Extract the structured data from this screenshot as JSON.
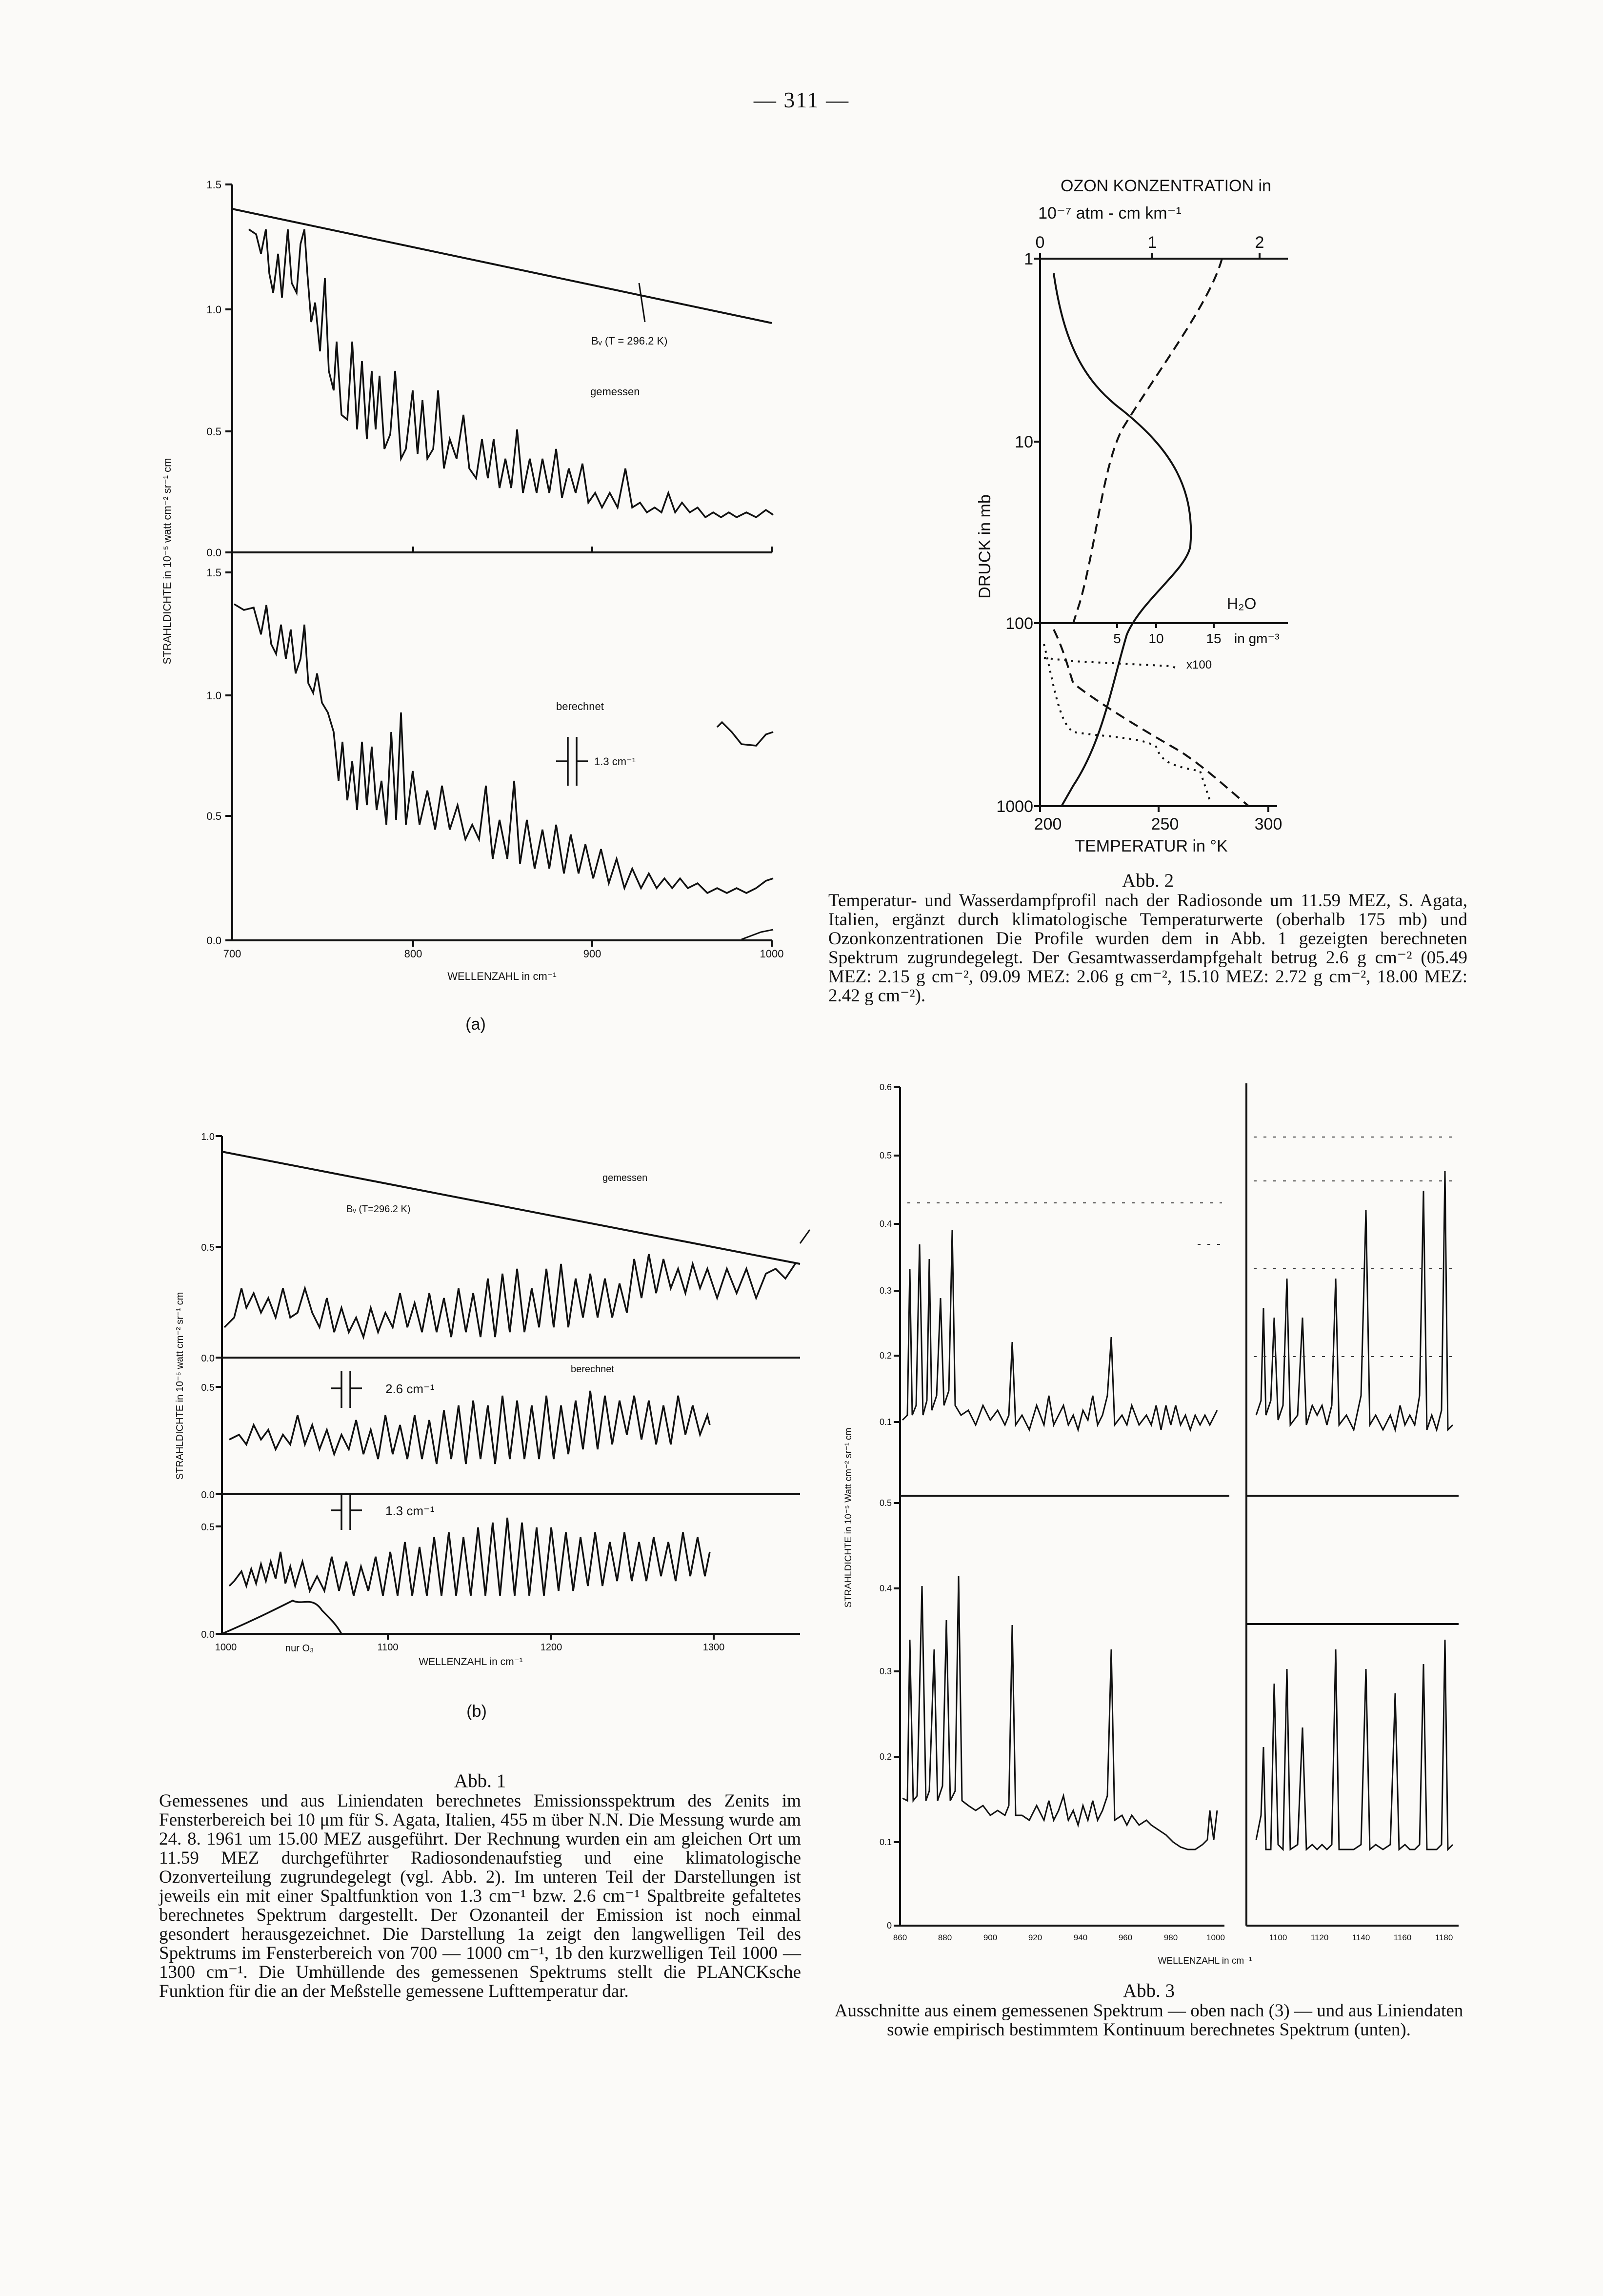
{
  "page": {
    "number": "— 311 —"
  },
  "fig1a": {
    "ylabel": "STRAHLDICHTE in 10⁻⁵ watt cm⁻² sr⁻¹ cm",
    "xlabel": "WELLENZAHL in cm⁻¹",
    "upper_yticks": [
      "1.5",
      "1.0",
      "0.5",
      "0.0"
    ],
    "lower_yticks": [
      "1.5",
      "1.0",
      "0.5",
      "0.0"
    ],
    "xticks": [
      "700",
      "800",
      "900",
      "1000"
    ],
    "planck_label": "Bᵥ (T = 296.2 K)",
    "measured_label": "gemessen",
    "computed_label": "berechnet",
    "slit_label": "1.3 cm⁻¹",
    "panel_label": "(a)"
  },
  "fig1b": {
    "ylabel": "STRAHLDICHTE in 10⁻⁵ watt cm⁻² sr⁻¹ cm",
    "xlabel": "WELLENZAHL in cm⁻¹",
    "yticks_top": [
      "1.0",
      "0.5",
      "0.0"
    ],
    "yticks_mid": [
      "0.5",
      "0.0"
    ],
    "yticks_low": [
      "0.5",
      "0.0"
    ],
    "xticks": [
      "1000",
      "1100",
      "1200",
      "1300"
    ],
    "planck_label": "Bᵥ (T=296.2 K)",
    "measured_label": "gemessen",
    "computed_label": "berechnet",
    "slit_26": "2.6 cm⁻¹",
    "slit_13": "1.3 cm⁻¹",
    "ozone_label": "nur O₃",
    "panel_label": "(b)"
  },
  "fig1_caption": {
    "title": "Abb. 1",
    "text": "Gemessenes und aus Liniendaten berechnetes Emissionsspektrum des Zenits im Fensterbereich bei 10 μm für S. Agata, Italien, 455 m über N.N. Die Messung wurde am 24. 8. 1961 um 15.00 MEZ ausgeführt. Der Rechnung wurden ein am gleichen Ort um 11.59 MEZ durchgeführter Radiosondenaufstieg und eine klimatologische Ozonverteilung zugrundegelegt (vgl. Abb. 2). Im unteren Teil der Darstellungen ist jeweils ein mit einer Spaltfunktion von 1.3 cm⁻¹ bzw. 2.6 cm⁻¹ Spaltbreite gefaltetes berechnetes Spektrum dargestellt. Der Ozonanteil der Emission ist noch einmal gesondert herausgezeichnet. Die Darstellung 1a zeigt den langwelligen Teil des Spektrums im Fensterbereich von 700 — 1000 cm⁻¹, 1b den kurzwelligen Teil 1000 — 1300 cm⁻¹. Die Umhüllende des gemessenen Spektrums stellt die PLANCKsche Funktion für die an der Meßstelle gemessene Lufttemperatur dar."
  },
  "fig2": {
    "top_axis_title": "OZON KONZENTRATION in",
    "top_axis_unit": "10⁻⁷ atm - cm km⁻¹",
    "top_ticks": [
      "0",
      "1",
      "2"
    ],
    "ylabel": "DRUCK in mb",
    "yticks": [
      "1",
      "10",
      "100",
      "1000"
    ],
    "h2o_label": "H₂O",
    "h2o_ticks": [
      "5",
      "10",
      "15"
    ],
    "h2o_unit": "in gm⁻³",
    "x100_label": "x100",
    "bottom_ticks": [
      "200",
      "250",
      "300"
    ],
    "xlabel": "TEMPERATUR in °K"
  },
  "fig2_caption": {
    "title": "Abb. 2",
    "text": "Temperatur- und Wasserdampfprofil nach der Radiosonde um 11.59 MEZ, S. Agata, Italien, ergänzt durch klimatologische Temperaturwerte (oberhalb 175 mb) und Ozonkonzentrationen Die Profile wurden dem in Abb. 1 gezeigten berechneten Spektrum zugrundegelegt. Der Gesamtwasserdampfgehalt betrug 2.6 g cm⁻² (05.49 MEZ: 2.15 g cm⁻², 09.09 MEZ: 2.06 g cm⁻², 15.10 MEZ: 2.72 g cm⁻², 18.00 MEZ: 2.42 g cm⁻²)."
  },
  "fig3": {
    "ylabel": "STRAHLDICHTE in 10⁻⁵ Watt cm⁻² sr⁻¹ cm",
    "upper_yticks": [
      "0.6",
      "0.5",
      "0.4",
      "0.3",
      "0.2",
      "0.1"
    ],
    "lower_yticks": [
      "0.5",
      "0.4",
      "0.3",
      "0.2",
      "0.1",
      "0"
    ],
    "xticks_left": [
      "860",
      "880",
      "900",
      "920",
      "940",
      "960",
      "980",
      "1000"
    ],
    "xticks_right": [
      "1100",
      "1120",
      "1140",
      "1160",
      "1180"
    ],
    "xlabel": "WELLENZAHL in cm⁻¹"
  },
  "fig3_caption": {
    "title": "Abb. 3",
    "text": "Ausschnitte aus einem gemessenen Spektrum — oben nach (3) — und aus Liniendaten sowie empirisch bestimmtem Kontinuum berechnetes Spektrum (unten)."
  },
  "chart_data": [
    {
      "type": "line",
      "title": "",
      "xlabel": "WELLENZAHL in cm⁻¹",
      "ylabel": "STRAHLDICHTE in 10⁻⁵ watt cm⁻² sr⁻¹ cm",
      "xlim": [
        700,
        1000
      ],
      "ylim": [
        0,
        1.5
      ],
      "series": [
        {
          "name": "Bᵥ (T = 296.2 K)",
          "x": [
            700,
            1000
          ],
          "values": [
            1.42,
            0.95
          ]
        },
        {
          "name": "gemessen",
          "x": [
            710,
            750,
            760,
            800,
            850,
            900,
            950,
            1000
          ],
          "values": [
            1.35,
            1.1,
            0.5,
            0.45,
            0.3,
            0.25,
            0.22,
            0.18
          ]
        },
        {
          "name": "berechnet",
          "x": [
            710,
            750,
            760,
            800,
            850,
            900,
            950,
            1000
          ],
          "values": [
            1.35,
            1.2,
            0.55,
            0.4,
            0.32,
            0.22,
            0.18,
            0.2
          ]
        }
      ]
    },
    {
      "type": "line",
      "title": "",
      "xlabel": "WELLENZAHL in cm⁻¹",
      "ylabel": "STRAHLDICHTE in 10⁻⁵ watt cm⁻² sr⁻¹ cm",
      "xlim": [
        1000,
        1350
      ],
      "series": [
        {
          "name": "Bᵥ (T=296.2 K)",
          "x": [
            1000,
            1350
          ],
          "values": [
            0.92,
            0.42
          ]
        },
        {
          "name": "gemessen",
          "x": [
            1000,
            1100,
            1200,
            1300,
            1350
          ],
          "values": [
            0.3,
            0.2,
            0.3,
            0.35,
            0.4
          ]
        },
        {
          "name": "2.6 cm⁻¹",
          "x": [
            1000,
            1100,
            1200,
            1300
          ],
          "values": [
            0.28,
            0.22,
            0.3,
            0.4
          ]
        },
        {
          "name": "1.3 cm⁻¹",
          "x": [
            1000,
            1100,
            1200,
            1300
          ],
          "values": [
            0.3,
            0.3,
            0.35,
            0.4
          ]
        },
        {
          "name": "nur O₃",
          "x": [
            1000,
            1040,
            1050,
            1075
          ],
          "values": [
            0.0,
            0.1,
            0.15,
            0.0
          ]
        }
      ]
    },
    {
      "type": "line",
      "title": "",
      "xlabel": "TEMPERATUR in °K",
      "ylabel": "DRUCK in mb",
      "yscale": "log",
      "ylim": [
        1,
        1000
      ],
      "series": [
        {
          "name": "TEMPERATUR",
          "x": [
            212,
            235,
            268,
            262,
            240,
            222,
            210
          ],
          "values": [
            4,
            10,
            40,
            80,
            150,
            500,
            1000
          ]
        },
        {
          "name": "OZON KONZENTRATION",
          "x": [
            1.6,
            1.1,
            0.7,
            0.45,
            0.35
          ],
          "values": [
            1,
            5,
            20,
            70,
            100
          ]
        },
        {
          "name": "H₂O",
          "x": [
            0,
            1,
            4,
            8,
            16
          ],
          "values": [
            130,
            300,
            450,
            620,
            1000
          ]
        }
      ]
    },
    {
      "type": "line",
      "title": "",
      "xlabel": "WELLENZAHL in cm⁻¹",
      "ylabel": "STRAHLDICHTE in 10⁻⁵ Watt cm⁻² sr⁻¹ cm",
      "series": [
        {
          "name": "",
          "x": [
            860,
            1000
          ],
          "values": [
            0.12,
            0.12
          ]
        },
        {
          "name": "",
          "x": [
            860,
            1000
          ],
          "values": [
            0.15,
            0.07
          ]
        }
      ]
    }
  ]
}
